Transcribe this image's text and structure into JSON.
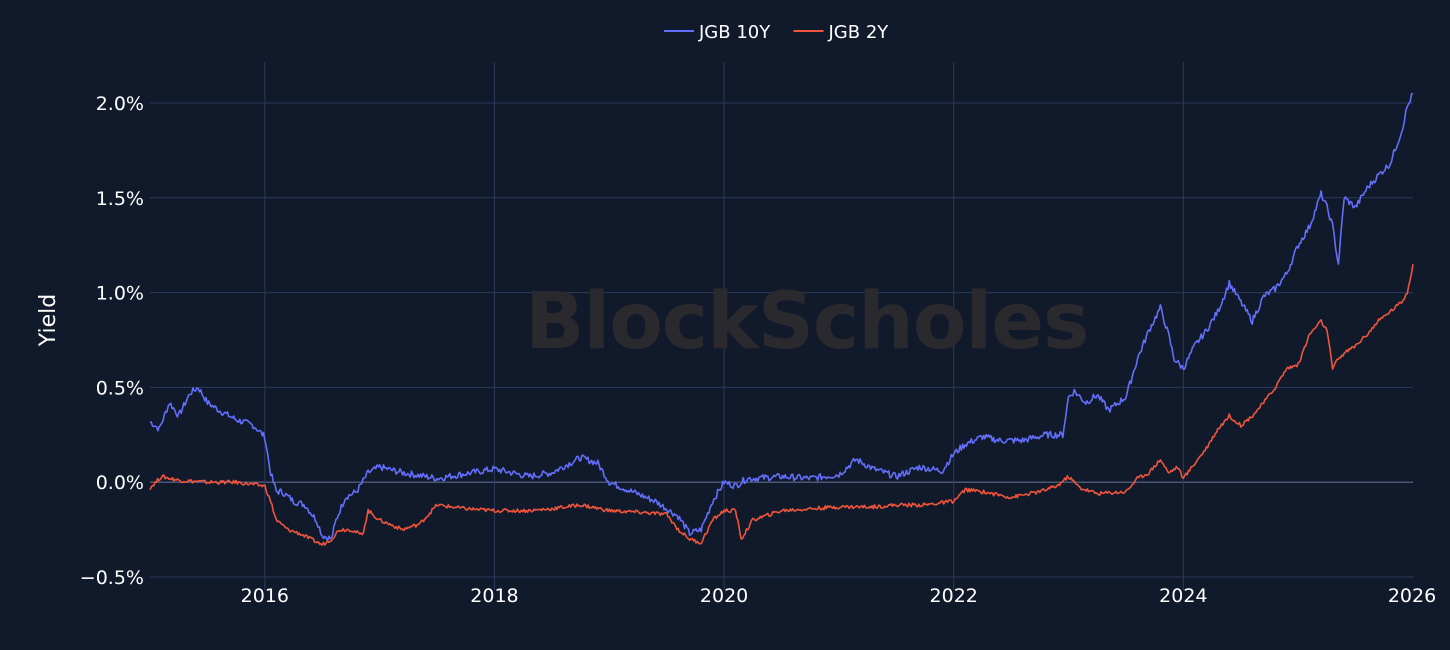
{
  "chart_data": {
    "type": "line",
    "ylabel": "Yield",
    "y_format": "percent",
    "ylim": [
      -0.5,
      2.2
    ],
    "y_ticks": [
      "−0.5%",
      "0.0%",
      "0.5%",
      "1.0%",
      "1.5%",
      "2.0%"
    ],
    "y_tick_values": [
      -0.5,
      0.0,
      0.5,
      1.0,
      1.5,
      2.0
    ],
    "x_ticks": [
      "2016",
      "2018",
      "2020",
      "2022",
      "2024",
      "2026"
    ],
    "x_tick_values": [
      2016,
      2018,
      2020,
      2022,
      2024,
      2026
    ],
    "xlim": [
      2015.0,
      2026.0
    ],
    "grid": true,
    "legend_position": "top-center",
    "watermark": "BlockScholes",
    "series": [
      {
        "name": "JGB 10Y",
        "color": "#636efa",
        "x": [
          2015.0,
          2015.08,
          2015.17,
          2015.25,
          2015.35,
          2015.42,
          2015.5,
          2015.6,
          2015.75,
          2015.9,
          2016.0,
          2016.05,
          2016.1,
          2016.15,
          2016.25,
          2016.35,
          2016.45,
          2016.5,
          2016.58,
          2016.62,
          2016.7,
          2016.8,
          2016.9,
          2017.0,
          2017.2,
          2017.5,
          2017.8,
          2018.0,
          2018.3,
          2018.5,
          2018.75,
          2018.9,
          2019.0,
          2019.2,
          2019.4,
          2019.6,
          2019.7,
          2019.8,
          2019.9,
          2020.0,
          2020.1,
          2020.2,
          2020.25,
          2020.5,
          2020.75,
          2021.0,
          2021.15,
          2021.3,
          2021.5,
          2021.7,
          2021.9,
          2022.0,
          2022.1,
          2022.25,
          2022.4,
          2022.6,
          2022.8,
          2022.95,
          2023.0,
          2023.05,
          2023.15,
          2023.25,
          2023.35,
          2023.5,
          2023.6,
          2023.7,
          2023.8,
          2023.87,
          2023.92,
          2024.0,
          2024.1,
          2024.2,
          2024.3,
          2024.4,
          2024.5,
          2024.6,
          2024.7,
          2024.8,
          2024.9,
          2025.0,
          2025.1,
          2025.2,
          2025.25,
          2025.3,
          2025.35,
          2025.4,
          2025.5,
          2025.6,
          2025.7,
          2025.8,
          2025.9,
          2025.95,
          2026.0
        ],
        "values": [
          0.32,
          0.28,
          0.42,
          0.35,
          0.47,
          0.5,
          0.42,
          0.38,
          0.33,
          0.3,
          0.24,
          0.05,
          -0.05,
          -0.05,
          -0.1,
          -0.12,
          -0.2,
          -0.28,
          -0.3,
          -0.2,
          -0.08,
          -0.05,
          0.05,
          0.08,
          0.05,
          0.02,
          0.05,
          0.07,
          0.03,
          0.05,
          0.13,
          0.1,
          0.0,
          -0.05,
          -0.1,
          -0.18,
          -0.27,
          -0.25,
          -0.1,
          0.0,
          -0.02,
          0.02,
          0.02,
          0.03,
          0.02,
          0.04,
          0.12,
          0.07,
          0.03,
          0.08,
          0.06,
          0.15,
          0.2,
          0.24,
          0.22,
          0.22,
          0.25,
          0.25,
          0.45,
          0.48,
          0.42,
          0.46,
          0.38,
          0.45,
          0.65,
          0.8,
          0.92,
          0.78,
          0.65,
          0.6,
          0.72,
          0.8,
          0.9,
          1.05,
          0.95,
          0.85,
          0.98,
          1.02,
          1.1,
          1.25,
          1.35,
          1.52,
          1.45,
          1.35,
          1.15,
          1.5,
          1.45,
          1.55,
          1.62,
          1.68,
          1.85,
          1.98,
          2.05
        ]
      },
      {
        "name": "JGB 2Y",
        "color": "#ef553b",
        "x": [
          2015.0,
          2015.1,
          2015.25,
          2015.5,
          2015.75,
          2016.0,
          2016.05,
          2016.1,
          2016.2,
          2016.3,
          2016.4,
          2016.5,
          2016.58,
          2016.65,
          2016.75,
          2016.85,
          2016.9,
          2017.0,
          2017.2,
          2017.35,
          2017.5,
          2017.75,
          2018.0,
          2018.3,
          2018.5,
          2018.75,
          2019.0,
          2019.3,
          2019.5,
          2019.6,
          2019.7,
          2019.8,
          2019.9,
          2020.0,
          2020.1,
          2020.15,
          2020.25,
          2020.5,
          2020.75,
          2021.0,
          2021.3,
          2021.5,
          2021.75,
          2022.0,
          2022.1,
          2022.25,
          2022.5,
          2022.75,
          2022.9,
          2023.0,
          2023.1,
          2023.25,
          2023.5,
          2023.6,
          2023.7,
          2023.8,
          2023.87,
          2023.95,
          2024.0,
          2024.1,
          2024.2,
          2024.3,
          2024.4,
          2024.5,
          2024.6,
          2024.7,
          2024.8,
          2024.9,
          2025.0,
          2025.1,
          2025.2,
          2025.25,
          2025.3,
          2025.35,
          2025.4,
          2025.5,
          2025.6,
          2025.7,
          2025.8,
          2025.9,
          2025.95,
          2026.0
        ],
        "values": [
          -0.03,
          0.03,
          0.01,
          0.0,
          0.0,
          -0.02,
          -0.1,
          -0.2,
          -0.25,
          -0.27,
          -0.3,
          -0.33,
          -0.3,
          -0.25,
          -0.25,
          -0.28,
          -0.15,
          -0.2,
          -0.25,
          -0.22,
          -0.12,
          -0.14,
          -0.15,
          -0.15,
          -0.14,
          -0.12,
          -0.15,
          -0.16,
          -0.17,
          -0.25,
          -0.3,
          -0.32,
          -0.2,
          -0.15,
          -0.15,
          -0.3,
          -0.2,
          -0.15,
          -0.14,
          -0.13,
          -0.13,
          -0.12,
          -0.12,
          -0.1,
          -0.04,
          -0.05,
          -0.08,
          -0.05,
          -0.02,
          0.03,
          -0.03,
          -0.06,
          -0.05,
          0.02,
          0.05,
          0.12,
          0.05,
          0.08,
          0.02,
          0.1,
          0.18,
          0.28,
          0.35,
          0.3,
          0.35,
          0.42,
          0.5,
          0.6,
          0.62,
          0.78,
          0.85,
          0.8,
          0.6,
          0.65,
          0.68,
          0.72,
          0.78,
          0.85,
          0.9,
          0.95,
          1.0,
          1.15
        ]
      }
    ]
  }
}
